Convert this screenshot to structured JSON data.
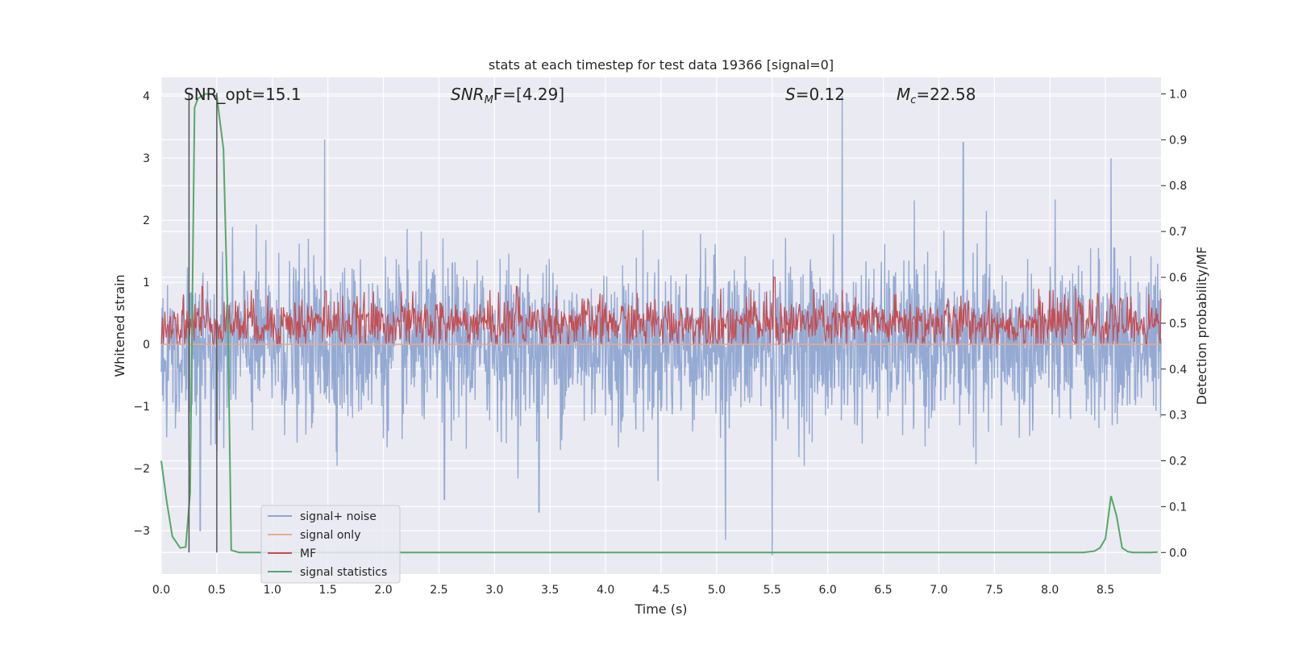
{
  "chart_data": {
    "type": "line",
    "title": "stats at each timestep for test data 19366 [signal=0]",
    "xlabel": "Time (s)",
    "ylabel": "Whitened strain",
    "y2label": "Detection probability/MF",
    "xlim": [
      0.0,
      9.0
    ],
    "ylim": [
      -3.7,
      4.3
    ],
    "y2lim": [
      -0.047,
      1.036
    ],
    "x_ticks": [
      "0.0",
      "0.5",
      "1.0",
      "1.5",
      "2.0",
      "2.5",
      "3.0",
      "3.5",
      "4.0",
      "4.5",
      "5.0",
      "5.5",
      "6.0",
      "6.5",
      "7.0",
      "7.5",
      "8.0",
      "8.5"
    ],
    "y_ticks": [
      "−3",
      "−2",
      "−1",
      "0",
      "1",
      "2",
      "3",
      "4"
    ],
    "y2_ticks": [
      "0.0",
      "0.1",
      "0.2",
      "0.3",
      "0.4",
      "0.5",
      "0.6",
      "0.7",
      "0.8",
      "0.9",
      "1.0"
    ],
    "grid": true,
    "legend_position": "lower-left",
    "annotations": {
      "snr_opt": "SNR_opt=15.1",
      "snr_mf_sym": "SNR",
      "snr_mf_sub": "M",
      "snr_mf_tail": "F=[4.29]",
      "s_sym": "S",
      "s_val": "=0.12",
      "mc_sym": "M",
      "mc_sub": "c",
      "mc_val": "=22.58"
    },
    "vertical_markers_x": [
      0.25,
      0.5
    ],
    "series": [
      {
        "name": "signal+ noise",
        "color": "#8fa6d1",
        "axis": "left",
        "noise_amplitude": 1.05,
        "peaks": [
          [
            1.47,
            3.3
          ],
          [
            6.13,
            4.0
          ],
          [
            7.22,
            3.25
          ],
          [
            8.55,
            3.0
          ],
          [
            5.5,
            -3.4
          ],
          [
            5.08,
            -3.15
          ],
          [
            0.35,
            -3.0
          ],
          [
            2.55,
            -2.5
          ],
          [
            3.4,
            -2.7
          ]
        ]
      },
      {
        "name": "signal only",
        "color": "#e8a98f",
        "axis": "left",
        "values": [
          0.0,
          0.0
        ]
      },
      {
        "name": "MF",
        "color": "#c44e52",
        "axis": "right",
        "baseline": 0.5,
        "spikes": [
          [
            0.37,
            0.58
          ],
          [
            5.52,
            0.6
          ],
          [
            3.2,
            0.58
          ],
          [
            1.48,
            0.57
          ]
        ]
      },
      {
        "name": "signal statistics",
        "color": "#55a868",
        "axis": "right",
        "x": [
          0.0,
          0.05,
          0.1,
          0.17,
          0.22,
          0.26,
          0.3,
          0.33,
          0.4,
          0.45,
          0.5,
          0.56,
          0.6,
          0.63,
          0.7,
          1.0,
          2.0,
          3.0,
          4.0,
          5.0,
          6.0,
          7.0,
          8.0,
          8.3,
          8.4,
          8.45,
          8.5,
          8.55,
          8.6,
          8.65,
          8.7,
          8.75,
          8.8,
          8.9,
          8.97
        ],
        "y": [
          0.2,
          0.11,
          0.035,
          0.01,
          0.012,
          0.13,
          0.97,
          0.99,
          1.0,
          1.0,
          0.995,
          0.88,
          0.5,
          0.005,
          0.0,
          0.0,
          0.0,
          0.0,
          0.0,
          0.0,
          0.0,
          0.0,
          0.0,
          0.0,
          0.003,
          0.01,
          0.03,
          0.123,
          0.08,
          0.01,
          0.002,
          0.0,
          0.0,
          0.0,
          0.001
        ]
      }
    ]
  }
}
